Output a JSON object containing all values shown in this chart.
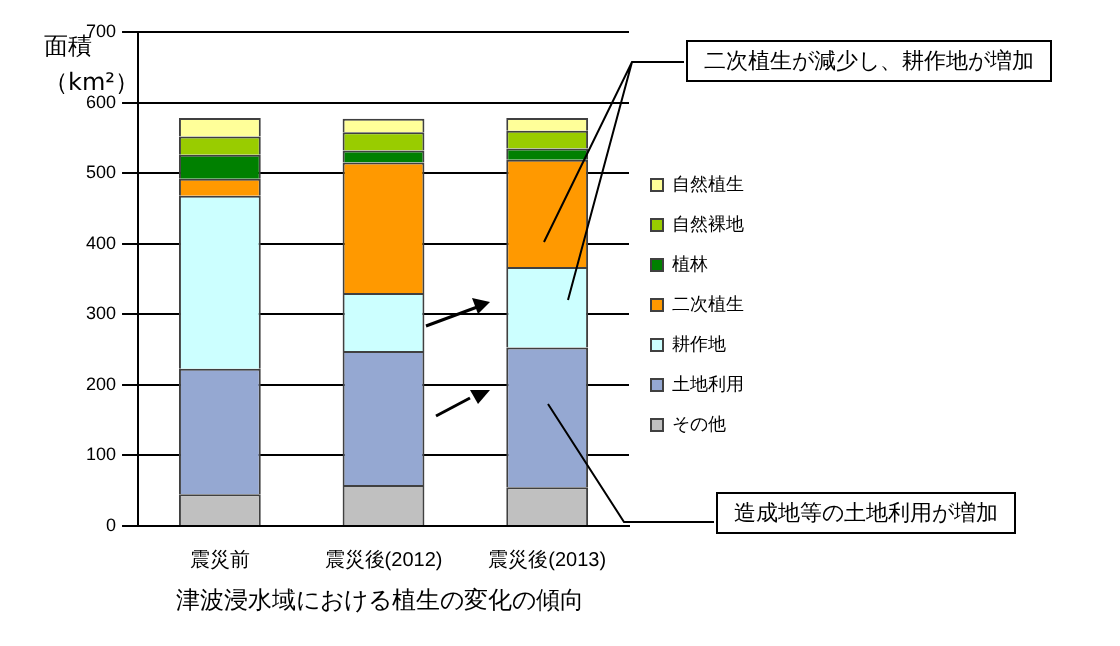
{
  "chart_data": {
    "type": "bar",
    "title": "津波浸水域における植生の変化の傾向",
    "ylabel": "面積（km²）",
    "categories": [
      "震災前",
      "震災後(2012)",
      "震災後(2013)"
    ],
    "stacked": true,
    "series": [
      {
        "name": "その他",
        "color": "#c0c0c0",
        "values": [
          45,
          58,
          55
        ]
      },
      {
        "name": "土地利用",
        "color": "#95a8d2",
        "values": [
          178,
          190,
          198
        ]
      },
      {
        "name": "耕作地",
        "color": "#ccffff",
        "values": [
          245,
          82,
          114
        ]
      },
      {
        "name": "二次植生",
        "color": "#ff9900",
        "values": [
          24,
          185,
          152
        ]
      },
      {
        "name": "植林",
        "color": "#008000",
        "values": [
          34,
          17,
          16
        ]
      },
      {
        "name": "自然裸地",
        "color": "#99cc00",
        "values": [
          26,
          26,
          25
        ]
      },
      {
        "name": "自然植生",
        "color": "#ffff99",
        "values": [
          26,
          19,
          18
        ]
      }
    ],
    "ylim": [
      0,
      700
    ],
    "yticks": [
      0,
      100,
      200,
      300,
      400,
      500,
      600,
      700
    ],
    "grid": "y",
    "legend": "right",
    "annotations": [
      "二次植生が減少し、耕作地が増加",
      "造成地等の土地利用が増加"
    ]
  }
}
